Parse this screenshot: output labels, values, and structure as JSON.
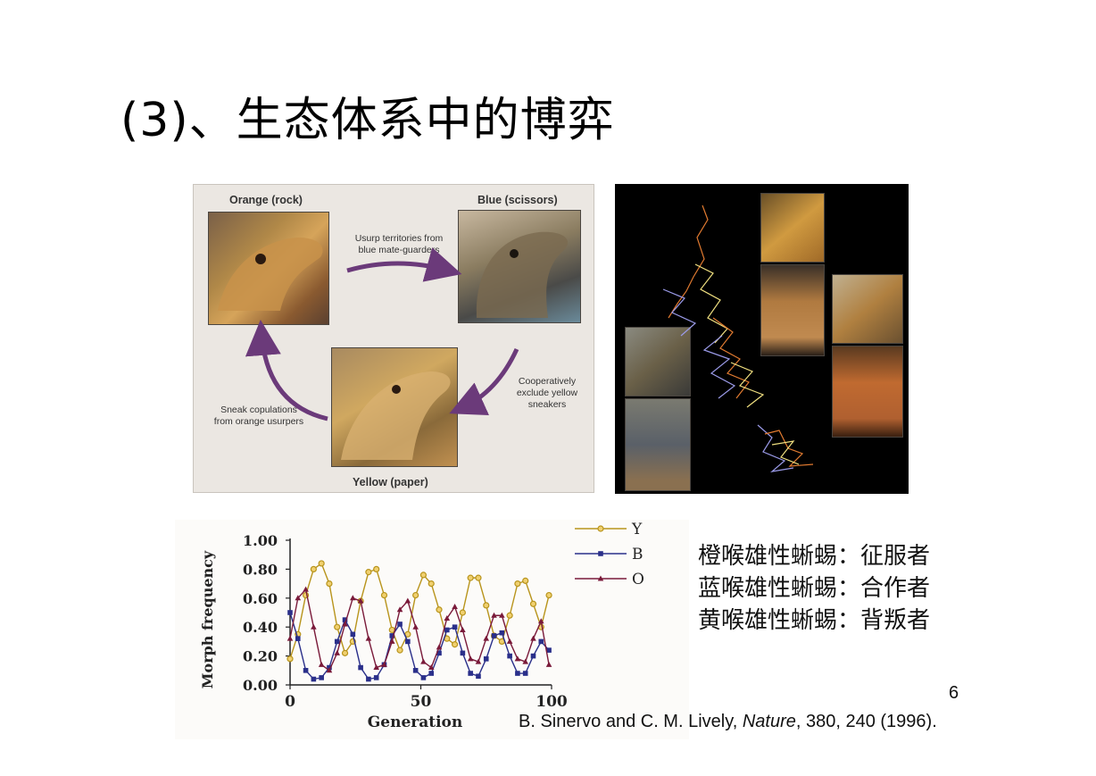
{
  "slide": {
    "title": "(3)、生态体系中的博弈",
    "page_number": "6",
    "citation_prefix": "B. Sinervo and C. M. Lively, ",
    "citation_journal": "Nature",
    "citation_suffix": ", 380, 240 (1996)."
  },
  "figure_cycle": {
    "label_orange": "Orange (rock)",
    "label_blue": "Blue (scissors)",
    "label_yellow": "Yellow (paper)",
    "note_top": [
      "Usurp territories from",
      "blue mate-guarders"
    ],
    "note_right": [
      "Cooperatively",
      "exclude yellow",
      "sneakers"
    ],
    "note_left": [
      "Sneak copulations",
      "from orange usurpers"
    ],
    "arrow_color": "#6b3a7a"
  },
  "morphs": {
    "lines": [
      "橙喉雄性蜥蜴：征服者",
      "蓝喉雄性蜥蜴：合作者",
      "黄喉雄性蜥蜴：背叛者"
    ]
  },
  "chart_data": {
    "type": "line",
    "xlabel": "Generation",
    "ylabel": "Morph frequency",
    "xlim": [
      0,
      100
    ],
    "ylim": [
      0,
      1.0
    ],
    "xticks": [
      "0",
      "50",
      "100"
    ],
    "yticks": [
      "0.00",
      "0.20",
      "0.40",
      "0.60",
      "0.80",
      "1.00"
    ],
    "x": [
      0,
      3,
      6,
      9,
      12,
      15,
      18,
      21,
      24,
      27,
      30,
      33,
      36,
      39,
      42,
      45,
      48,
      51,
      54,
      57,
      60,
      63,
      66,
      69,
      72,
      75,
      78,
      81,
      84,
      87,
      90,
      93,
      96,
      99
    ],
    "series": [
      {
        "name": "Y",
        "color": "#b8941c",
        "marker": "circle",
        "values": [
          0.18,
          0.35,
          0.62,
          0.8,
          0.84,
          0.7,
          0.4,
          0.22,
          0.3,
          0.58,
          0.78,
          0.8,
          0.62,
          0.38,
          0.24,
          0.35,
          0.62,
          0.76,
          0.7,
          0.52,
          0.32,
          0.28,
          0.5,
          0.74,
          0.74,
          0.55,
          0.34,
          0.3,
          0.48,
          0.7,
          0.72,
          0.56,
          0.4,
          0.62
        ]
      },
      {
        "name": "B",
        "color": "#2a2f8a",
        "marker": "square",
        "values": [
          0.5,
          0.32,
          0.1,
          0.04,
          0.05,
          0.12,
          0.3,
          0.45,
          0.35,
          0.12,
          0.04,
          0.05,
          0.14,
          0.34,
          0.42,
          0.3,
          0.1,
          0.05,
          0.08,
          0.22,
          0.38,
          0.4,
          0.22,
          0.08,
          0.06,
          0.18,
          0.34,
          0.36,
          0.2,
          0.08,
          0.08,
          0.2,
          0.3,
          0.24
        ]
      },
      {
        "name": "O",
        "color": "#7a1a3a",
        "marker": "triangle",
        "values": [
          0.32,
          0.6,
          0.66,
          0.4,
          0.14,
          0.1,
          0.22,
          0.42,
          0.6,
          0.58,
          0.32,
          0.12,
          0.14,
          0.3,
          0.52,
          0.58,
          0.4,
          0.16,
          0.12,
          0.26,
          0.46,
          0.54,
          0.38,
          0.18,
          0.16,
          0.32,
          0.48,
          0.48,
          0.3,
          0.18,
          0.16,
          0.32,
          0.44,
          0.14
        ]
      }
    ],
    "legend": "top-right"
  }
}
